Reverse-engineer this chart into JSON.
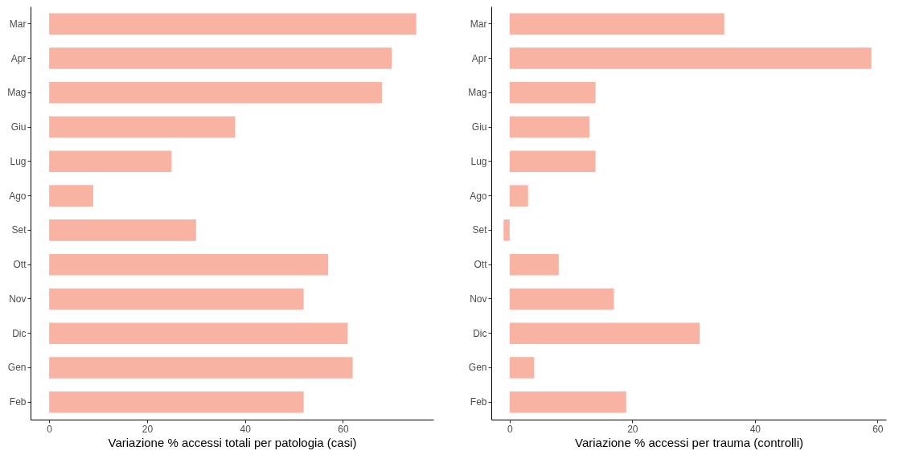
{
  "chart_data": [
    {
      "type": "bar",
      "orientation": "horizontal",
      "xlabel": "Variazione % accessi totali per patologia (casi)",
      "categories": [
        "Mar",
        "Apr",
        "Mag",
        "Giu",
        "Lug",
        "Ago",
        "Set",
        "Ott",
        "Nov",
        "Dic",
        "Gen",
        "Feb"
      ],
      "values": [
        75,
        70,
        68,
        38,
        25,
        9,
        30,
        57,
        52,
        61,
        62,
        52
      ],
      "color": "#f8b3a2",
      "xlim": [
        -3.8,
        78.5
      ],
      "xticks": [
        0,
        20,
        40,
        60
      ],
      "grid": false
    },
    {
      "type": "bar",
      "orientation": "horizontal",
      "xlabel": "Variazione % accessi per trauma (controlli)",
      "categories": [
        "Mar",
        "Apr",
        "Mag",
        "Giu",
        "Lug",
        "Ago",
        "Set",
        "Ott",
        "Nov",
        "Dic",
        "Gen",
        "Feb"
      ],
      "values": [
        35,
        59,
        14,
        13,
        14,
        3,
        -1,
        8,
        17,
        31,
        4,
        19
      ],
      "color": "#f8b3a2",
      "xlim": [
        -3,
        61.4
      ],
      "xticks": [
        0,
        20,
        40,
        60
      ],
      "grid": false
    }
  ]
}
